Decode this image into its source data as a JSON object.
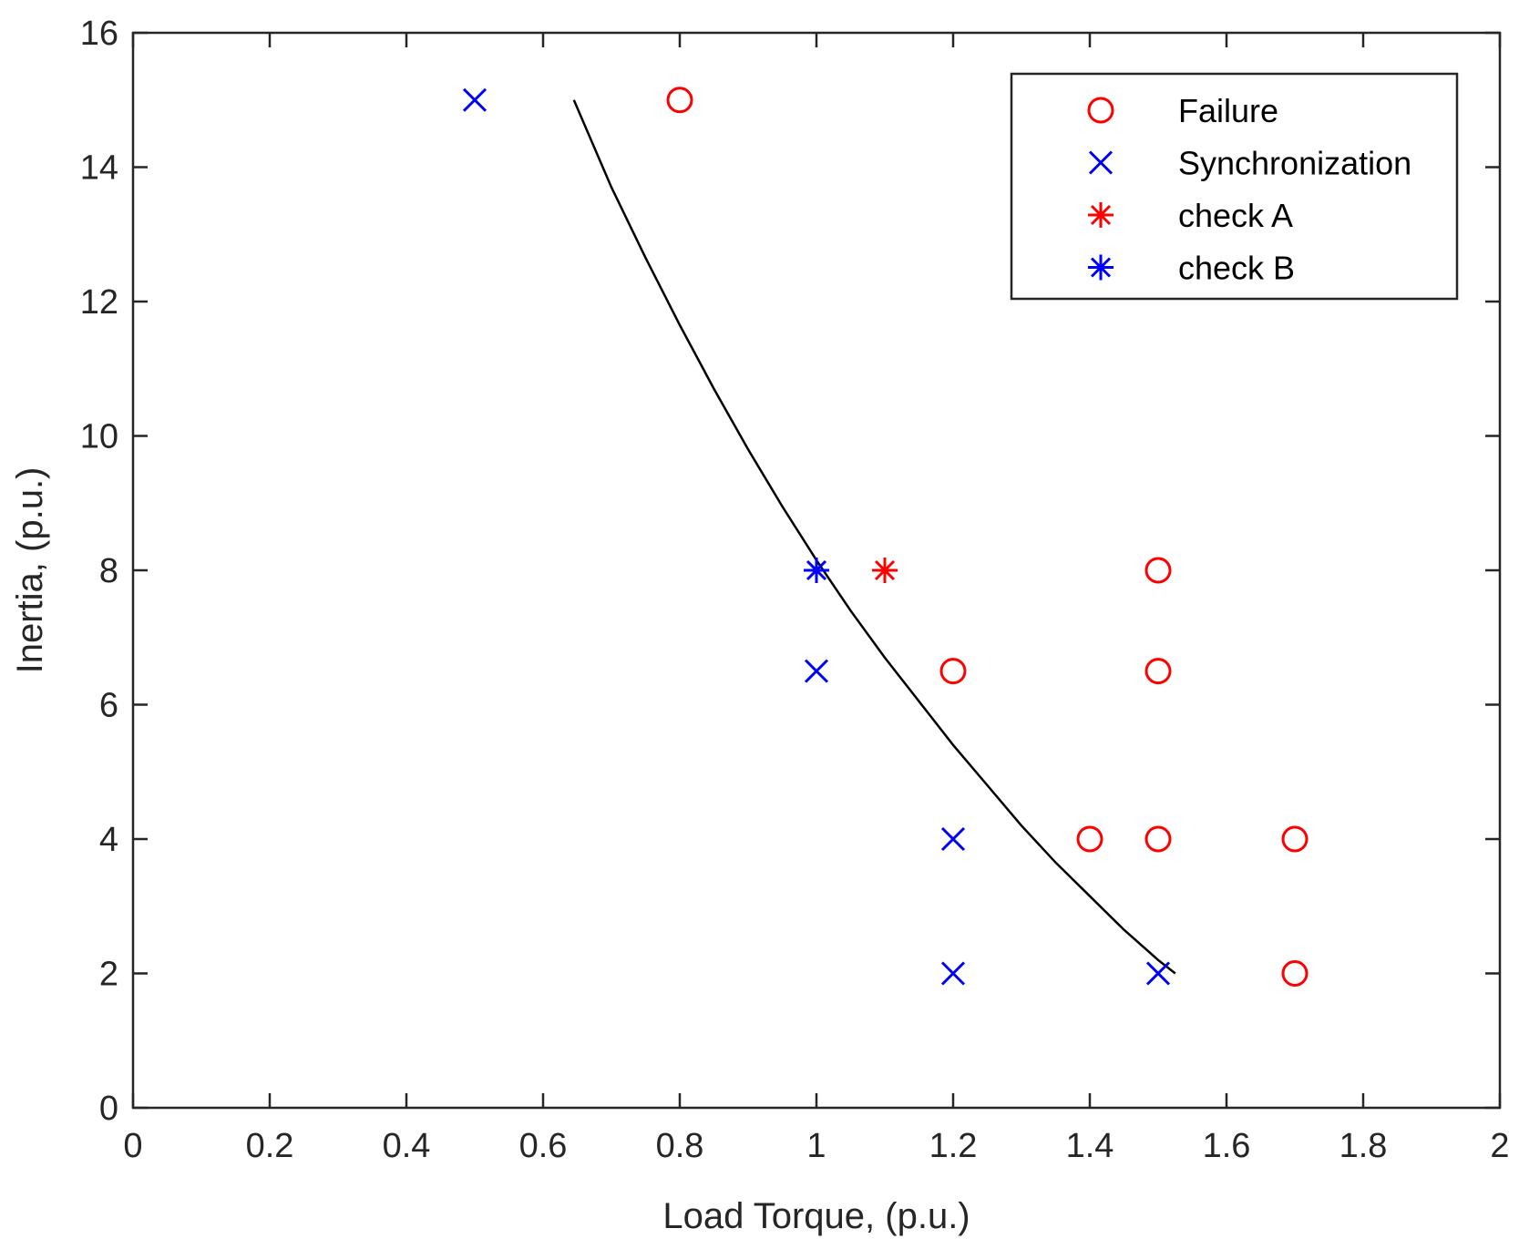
{
  "chart_data": {
    "type": "scatter",
    "title": "",
    "xlabel": "Load Torque, (p.u.)",
    "ylabel": "Inertia, (p.u.)",
    "xlim": [
      0,
      2
    ],
    "ylim": [
      0,
      16
    ],
    "grid": false,
    "legend_position": "top-right",
    "x_ticks": [
      0,
      0.2,
      0.4,
      0.6,
      0.8,
      1,
      1.2,
      1.4,
      1.6,
      1.8,
      2
    ],
    "x_tick_labels": [
      "0",
      "0.2",
      "0.4",
      "0.6",
      "0.8",
      "1",
      "1.2",
      "1.4",
      "1.6",
      "1.8",
      "2"
    ],
    "y_ticks": [
      0,
      2,
      4,
      6,
      8,
      10,
      12,
      14,
      16
    ],
    "y_tick_labels": [
      "0",
      "2",
      "4",
      "6",
      "8",
      "10",
      "12",
      "14",
      "16"
    ],
    "series": [
      {
        "name": "Failure",
        "marker": "circle",
        "color": "#ff0000",
        "points": [
          [
            0.8,
            15
          ],
          [
            1.5,
            8
          ],
          [
            1.2,
            6.5
          ],
          [
            1.5,
            6.5
          ],
          [
            1.4,
            4
          ],
          [
            1.5,
            4
          ],
          [
            1.7,
            4
          ],
          [
            1.7,
            2
          ]
        ]
      },
      {
        "name": "Synchronization",
        "marker": "x",
        "color": "#0000ff",
        "points": [
          [
            0.5,
            15
          ],
          [
            1.0,
            6.5
          ],
          [
            1.2,
            4
          ],
          [
            1.2,
            2
          ],
          [
            1.5,
            2
          ]
        ]
      },
      {
        "name": "check A",
        "marker": "asterisk",
        "color": "#ff0000",
        "points": [
          [
            1.1,
            8
          ]
        ]
      },
      {
        "name": "check B",
        "marker": "asterisk",
        "color": "#0000ff",
        "points": [
          [
            1.0,
            8
          ]
        ]
      }
    ],
    "boundary_curve": {
      "color": "#000000",
      "points": [
        [
          0.645,
          15
        ],
        [
          0.7,
          13.7
        ],
        [
          0.75,
          12.65
        ],
        [
          0.8,
          11.65
        ],
        [
          0.85,
          10.7
        ],
        [
          0.9,
          9.8
        ],
        [
          0.95,
          8.95
        ],
        [
          1.0,
          8.15
        ],
        [
          1.05,
          7.4
        ],
        [
          1.1,
          6.7
        ],
        [
          1.15,
          6.05
        ],
        [
          1.2,
          5.4
        ],
        [
          1.25,
          4.8
        ],
        [
          1.3,
          4.2
        ],
        [
          1.35,
          3.65
        ],
        [
          1.4,
          3.15
        ],
        [
          1.45,
          2.65
        ],
        [
          1.5,
          2.2
        ],
        [
          1.525,
          2.0
        ]
      ]
    }
  }
}
